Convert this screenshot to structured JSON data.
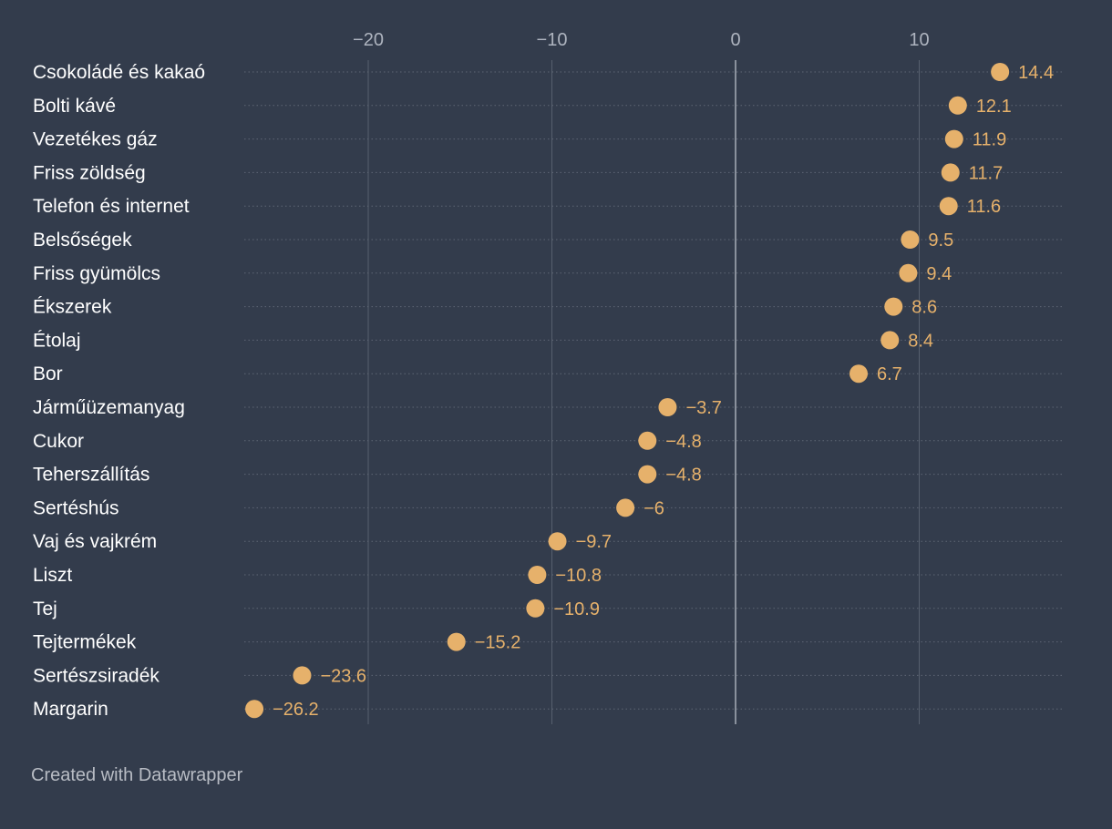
{
  "chart_data": {
    "type": "dot",
    "title": "",
    "xlabel": "",
    "ylabel": "",
    "xlim": [
      -27,
      14.4
    ],
    "x_ticks": [
      {
        "value": -20,
        "label": "−20"
      },
      {
        "value": -10,
        "label": "−10"
      },
      {
        "value": 0,
        "label": "0"
      },
      {
        "value": 10,
        "label": "10"
      }
    ],
    "categories": [
      "Csokoládé és kakaó",
      "Bolti kávé",
      "Vezetékes gáz",
      "Friss zöldség",
      "Telefon és internet",
      "Belsőségek",
      "Friss gyümölcs",
      "Ékszerek",
      "Étolaj",
      "Bor",
      "Járműüzemanyag",
      "Cukor",
      "Teherszállítás",
      "Sertéshús",
      "Vaj és vajkrém",
      "Liszt",
      "Tej",
      "Tejtermékek",
      "Sertészsiradék",
      "Margarin"
    ],
    "values": [
      14.4,
      12.1,
      11.9,
      11.7,
      11.6,
      9.5,
      9.4,
      8.6,
      8.4,
      6.7,
      -3.7,
      -4.8,
      -4.8,
      -6,
      -9.7,
      -10.8,
      -10.9,
      -15.2,
      -23.6,
      -26.2
    ],
    "value_labels": [
      "14.4",
      "12.1",
      "11.9",
      "11.7",
      "11.6",
      "9.5",
      "9.4",
      "8.6",
      "8.4",
      "6.7",
      "−3.7",
      "−4.8",
      "−4.8",
      "−6",
      "−9.7",
      "−10.8",
      "−10.9",
      "−15.2",
      "−23.6",
      "−26.2"
    ],
    "colors": {
      "background": "#333c4c",
      "dot": "#e6b16b",
      "gridline": "#57606e",
      "zeroline": "#a7adb8",
      "dotted_row": "#5e6674"
    }
  },
  "footer": {
    "credit": "Created with Datawrapper"
  }
}
